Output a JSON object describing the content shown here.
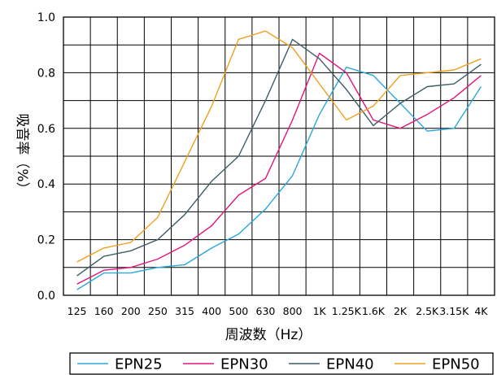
{
  "chart_data": {
    "type": "line",
    "xlabel": "周波数（Hz）",
    "ylabel": "吸音率（%）",
    "categories": [
      "125",
      "160",
      "200",
      "250",
      "315",
      "400",
      "500",
      "630",
      "800",
      "1K",
      "1.25K",
      "1.6K",
      "2K",
      "2.5K",
      "3.15K",
      "4K"
    ],
    "ylim": [
      0,
      1.0
    ],
    "yticks": [
      "0.0",
      "0.2",
      "0.4",
      "0.6",
      "0.8",
      "1.0"
    ],
    "ytick_values": [
      0,
      0.2,
      0.4,
      0.6,
      0.8,
      1.0
    ],
    "grid": true,
    "legend_position": "bottom",
    "series": [
      {
        "name": "EPN25",
        "color": "#2aa7de",
        "values": [
          0.02,
          0.08,
          0.08,
          0.1,
          0.11,
          0.17,
          0.22,
          0.31,
          0.43,
          0.65,
          0.82,
          0.79,
          0.69,
          0.59,
          0.6,
          0.75
        ]
      },
      {
        "name": "EPN30",
        "color": "#e0167f",
        "values": [
          0.04,
          0.09,
          0.1,
          0.13,
          0.18,
          0.25,
          0.36,
          0.42,
          0.63,
          0.87,
          0.8,
          0.63,
          0.6,
          0.65,
          0.71,
          0.79
        ]
      },
      {
        "name": "EPN40",
        "color": "#3d5c66",
        "values": [
          0.07,
          0.14,
          0.16,
          0.2,
          0.29,
          0.41,
          0.5,
          0.7,
          0.92,
          0.85,
          0.74,
          0.61,
          0.69,
          0.75,
          0.76,
          0.83
        ]
      },
      {
        "name": "EPN50",
        "color": "#f0a020",
        "values": [
          0.12,
          0.17,
          0.19,
          0.28,
          0.48,
          0.68,
          0.92,
          0.95,
          0.89,
          0.76,
          0.63,
          0.68,
          0.79,
          0.8,
          0.81,
          0.85
        ]
      }
    ]
  }
}
